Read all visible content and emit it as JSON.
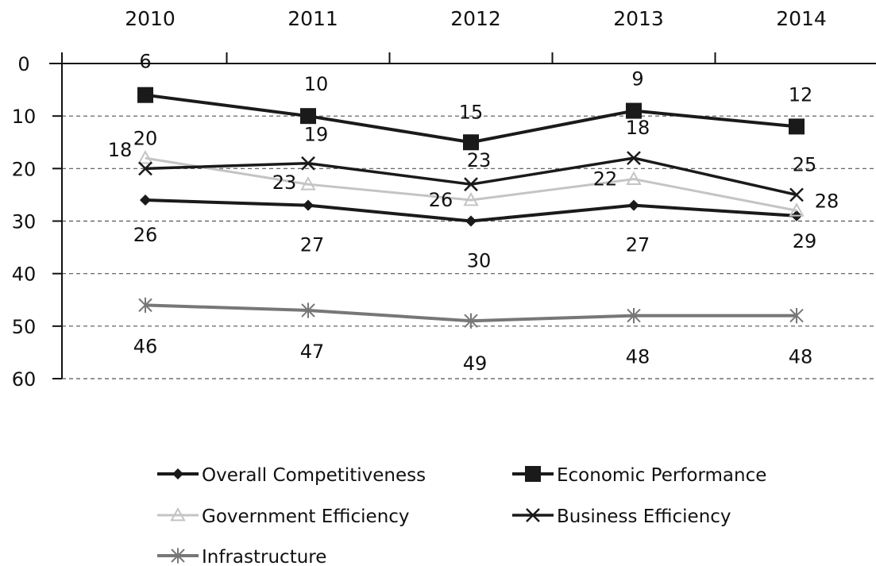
{
  "chart_data": {
    "type": "line",
    "title": "",
    "xlabel": "",
    "ylabel": "",
    "x": [
      "2010",
      "2011",
      "2012",
      "2013",
      "2014"
    ],
    "x_axis_position": "top",
    "y_axis_inverted": true,
    "ylim": [
      0,
      60
    ],
    "yticks": [
      "0",
      "10",
      "20",
      "30",
      "40",
      "50",
      "60"
    ],
    "grid": "dashed horizontal",
    "legend_position": "bottom",
    "series": [
      {
        "name": "Overall Competitiveness",
        "values": [
          26,
          27,
          30,
          27,
          29
        ],
        "labels": [
          "26",
          "27",
          "30",
          "27",
          "29"
        ],
        "color": "#1a1a1a",
        "marker": "diamond"
      },
      {
        "name": "Economic Performance",
        "values": [
          6,
          10,
          15,
          9,
          12
        ],
        "labels": [
          "6",
          "10",
          "15",
          "9",
          "12"
        ],
        "color": "#1a1a1a",
        "marker": "square"
      },
      {
        "name": "Government Efficiency",
        "values": [
          18,
          23,
          26,
          22,
          28
        ],
        "labels": [
          "18",
          "23",
          "26",
          "22",
          "28"
        ],
        "color": "#c4c4c4",
        "marker": "triangle"
      },
      {
        "name": "Business Efficiency",
        "values": [
          20,
          19,
          23,
          18,
          25
        ],
        "labels": [
          "20",
          "19",
          "23",
          "18",
          "25"
        ],
        "color": "#1a1a1a",
        "marker": "x"
      },
      {
        "name": "Infrastructure",
        "values": [
          46,
          47,
          49,
          48,
          48
        ],
        "labels": [
          "46",
          "47",
          "49",
          "48",
          "48"
        ],
        "color": "#777777",
        "marker": "asterisk"
      }
    ]
  }
}
